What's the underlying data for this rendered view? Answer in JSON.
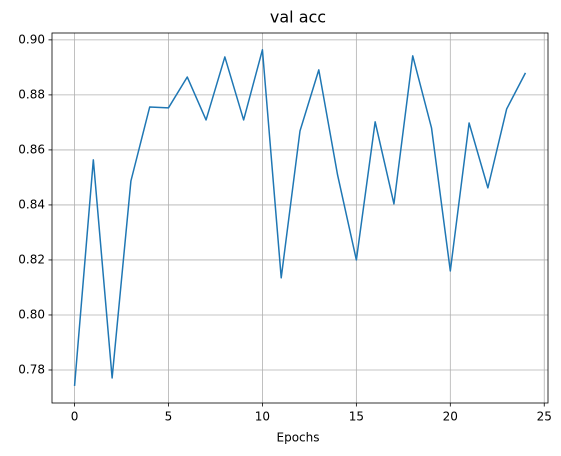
{
  "chart_data": {
    "type": "line",
    "title": "val acc",
    "xlabel": "Epochs",
    "x": [
      0,
      1,
      2,
      3,
      4,
      5,
      6,
      7,
      8,
      9,
      10,
      11,
      12,
      13,
      14,
      15,
      16,
      17,
      18,
      19,
      20,
      21,
      22,
      23,
      24
    ],
    "series": [
      {
        "color": "#1f77b4",
        "values": [
          0.7742,
          0.8564,
          0.7771,
          0.8487,
          0.8756,
          0.8753,
          0.8865,
          0.8709,
          0.8938,
          0.8709,
          0.8964,
          0.8135,
          0.8669,
          0.8891,
          0.8509,
          0.82,
          0.8702,
          0.8404,
          0.8942,
          0.868,
          0.816,
          0.8698,
          0.8462,
          0.8749,
          0.888
        ]
      }
    ],
    "xlim": [
      -1.2,
      25.2
    ],
    "xticks": [
      0,
      5,
      10,
      15,
      20,
      25
    ],
    "ylim": [
      0.768,
      0.9025
    ],
    "yticks": [
      0.78,
      {
        "value": 0.8,
        "label": "0.80"
      },
      0.82,
      0.84,
      0.86,
      0.88,
      {
        "value": 0.9,
        "label": "0.90"
      }
    ],
    "grid": true
  }
}
